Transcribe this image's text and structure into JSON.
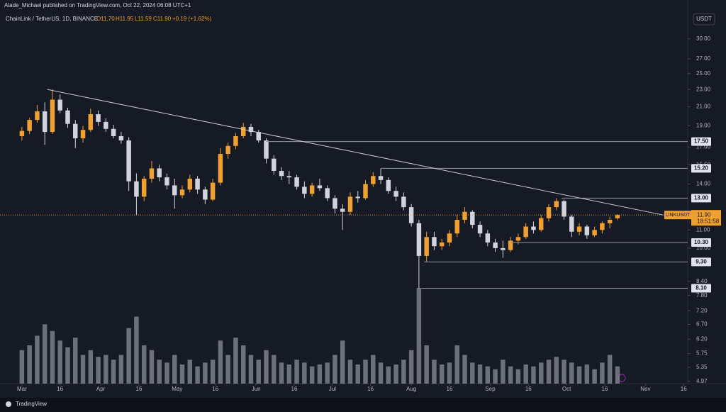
{
  "header": {
    "publisher": "Alade_Michael published on TradingView.com, Oct 22, 2024 06:08 UTC+1",
    "symbol": "ChainLink / TetherUS, 1D, BINANCE",
    "open": "O11.70",
    "high": "H11.95",
    "low": "L11.59",
    "close": "C11.90",
    "change": "+0.19 (+1.62%)"
  },
  "footer": {
    "brand": "TradingView"
  },
  "chart_data": {
    "type": "candlestick",
    "currency": "USDT",
    "symbol_tag": "LINKUSDT",
    "countdown": "18:51:58",
    "log_scale": true,
    "up_color": "#f0a030",
    "down_color": "#d1d4dc",
    "volume_color": "#8a8d96",
    "ylim": [
      4.91,
      32.9
    ],
    "xlim": [
      -8.6,
      261.6
    ],
    "yticks": [
      {
        "value": 30,
        "label": "30.00"
      },
      {
        "value": 27,
        "label": "27.00"
      },
      {
        "value": 25,
        "label": "25.00"
      },
      {
        "value": 23,
        "label": "23.00"
      },
      {
        "value": 21,
        "label": "21.00"
      },
      {
        "value": 19,
        "label": "19.00"
      },
      {
        "value": 17,
        "label": "17.00"
      },
      {
        "value": 15.5,
        "label": "15.50"
      },
      {
        "value": 14,
        "label": "14.00"
      },
      {
        "value": 11,
        "label": "11.00"
      },
      {
        "value": 10,
        "label": "10.00"
      },
      {
        "value": 8.4,
        "label": "8.40"
      },
      {
        "value": 7.8,
        "label": "7.80"
      },
      {
        "value": 7.2,
        "label": "7.20"
      },
      {
        "value": 6.7,
        "label": "6.70"
      },
      {
        "value": 6.2,
        "label": "6.20"
      },
      {
        "value": 5.75,
        "label": "5.75"
      },
      {
        "value": 5.35,
        "label": "5.35"
      },
      {
        "value": 4.97,
        "label": "4.97"
      }
    ],
    "xticks": [
      {
        "value": 0,
        "label": "Mar"
      },
      {
        "value": 15,
        "label": "16"
      },
      {
        "value": 31,
        "label": "Apr"
      },
      {
        "value": 46,
        "label": "16"
      },
      {
        "value": 61,
        "label": "May"
      },
      {
        "value": 76,
        "label": "16"
      },
      {
        "value": 92,
        "label": "Jun"
      },
      {
        "value": 107,
        "label": "16"
      },
      {
        "value": 122,
        "label": "Jul"
      },
      {
        "value": 137,
        "label": "16"
      },
      {
        "value": 153,
        "label": "Aug"
      },
      {
        "value": 168,
        "label": "16"
      },
      {
        "value": 184,
        "label": "Sep"
      },
      {
        "value": 199,
        "label": "16"
      },
      {
        "value": 214,
        "label": "Oct"
      },
      {
        "value": 229,
        "label": "16"
      },
      {
        "value": 245,
        "label": "Nov"
      },
      {
        "value": 260,
        "label": "16"
      }
    ],
    "current": {
      "value": 11.9,
      "label": "11.90"
    },
    "levels": [
      {
        "value": 17.5,
        "label": "17.50",
        "from": 96
      },
      {
        "value": 15.2,
        "label": "15.20",
        "from": 141
      },
      {
        "value": 13.0,
        "label": "13.00",
        "from": 212
      },
      {
        "value": 10.3,
        "label": "10.30",
        "from": 192
      },
      {
        "value": 9.3,
        "label": "9.30",
        "from": 158
      },
      {
        "value": 8.1,
        "label": "8.10",
        "from": 157
      }
    ],
    "trendline": {
      "x": [
        10,
        252
      ],
      "y": [
        23.0,
        11.9
      ]
    },
    "x": [
      0,
      3,
      6,
      9,
      12,
      15,
      18,
      21,
      24,
      27,
      30,
      33,
      36,
      39,
      42,
      45,
      48,
      51,
      54,
      57,
      60,
      63,
      66,
      69,
      72,
      75,
      78,
      81,
      84,
      87,
      90,
      93,
      96,
      99,
      102,
      105,
      108,
      111,
      114,
      117,
      120,
      123,
      126,
      129,
      132,
      135,
      138,
      141,
      144,
      147,
      150,
      153,
      156,
      159,
      162,
      165,
      168,
      171,
      174,
      177,
      180,
      183,
      186,
      189,
      192,
      195,
      198,
      201,
      204,
      207,
      210,
      213,
      216,
      219,
      222,
      225,
      228,
      231,
      234
    ],
    "candles": [
      [
        18.0,
        18.9,
        17.6,
        18.5
      ],
      [
        18.5,
        19.8,
        18.2,
        19.6
      ],
      [
        19.6,
        21.2,
        19.3,
        20.5
      ],
      [
        20.5,
        21.5,
        17.2,
        18.4
      ],
      [
        18.4,
        23.0,
        18.2,
        21.8
      ],
      [
        21.8,
        22.4,
        20.3,
        20.6
      ],
      [
        20.6,
        20.9,
        18.8,
        19.2
      ],
      [
        19.2,
        19.6,
        16.9,
        17.8
      ],
      [
        17.8,
        19.0,
        17.4,
        18.6
      ],
      [
        18.6,
        20.8,
        18.4,
        20.2
      ],
      [
        20.2,
        20.6,
        19.0,
        19.4
      ],
      [
        19.4,
        19.8,
        18.4,
        18.7
      ],
      [
        18.7,
        19.1,
        17.8,
        18.0
      ],
      [
        18.0,
        18.4,
        17.3,
        17.6
      ],
      [
        17.6,
        17.9,
        13.5,
        14.2
      ],
      [
        14.2,
        14.8,
        11.9,
        13.1
      ],
      [
        13.1,
        14.6,
        12.8,
        14.4
      ],
      [
        14.4,
        15.8,
        14.1,
        15.2
      ],
      [
        15.2,
        15.5,
        14.2,
        14.5
      ],
      [
        14.5,
        14.8,
        13.6,
        13.9
      ],
      [
        13.9,
        14.4,
        12.3,
        13.2
      ],
      [
        13.2,
        13.9,
        13.0,
        13.6
      ],
      [
        13.6,
        14.7,
        13.4,
        14.4
      ],
      [
        14.4,
        14.6,
        13.3,
        13.6
      ],
      [
        13.6,
        13.8,
        12.6,
        12.9
      ],
      [
        12.9,
        14.4,
        12.8,
        14.1
      ],
      [
        14.1,
        16.9,
        13.9,
        16.4
      ],
      [
        16.4,
        17.4,
        16.0,
        17.1
      ],
      [
        17.1,
        18.3,
        16.8,
        18.0
      ],
      [
        18.0,
        19.3,
        17.8,
        18.9
      ],
      [
        18.9,
        19.2,
        18.0,
        18.4
      ],
      [
        18.4,
        18.6,
        17.4,
        17.6
      ],
      [
        17.6,
        17.8,
        15.6,
        16.0
      ],
      [
        16.0,
        16.3,
        14.7,
        15.0
      ],
      [
        15.0,
        15.3,
        14.3,
        14.6
      ],
      [
        14.6,
        15.0,
        14.0,
        14.5
      ],
      [
        14.5,
        14.7,
        13.6,
        13.8
      ],
      [
        13.8,
        14.2,
        13.0,
        13.3
      ],
      [
        13.3,
        14.1,
        13.1,
        13.9
      ],
      [
        13.9,
        14.4,
        13.5,
        13.7
      ],
      [
        13.7,
        13.9,
        12.8,
        13.0
      ],
      [
        13.0,
        13.2,
        12.0,
        12.3
      ],
      [
        12.3,
        12.6,
        11.0,
        12.1
      ],
      [
        12.1,
        13.4,
        11.9,
        13.1
      ],
      [
        13.1,
        13.5,
        12.7,
        13.0
      ],
      [
        13.0,
        14.3,
        12.9,
        14.0
      ],
      [
        14.0,
        14.9,
        13.8,
        14.6
      ],
      [
        14.6,
        15.2,
        14.0,
        14.3
      ],
      [
        14.3,
        14.5,
        13.3,
        13.5
      ],
      [
        13.5,
        13.8,
        12.8,
        13.1
      ],
      [
        13.1,
        13.4,
        12.2,
        12.4
      ],
      [
        12.4,
        12.6,
        11.2,
        11.4
      ],
      [
        11.4,
        11.6,
        8.1,
        9.6
      ],
      [
        9.6,
        10.9,
        9.3,
        10.6
      ],
      [
        10.6,
        10.9,
        9.9,
        10.1
      ],
      [
        10.1,
        10.5,
        9.9,
        10.3
      ],
      [
        10.3,
        11.0,
        10.1,
        10.8
      ],
      [
        10.8,
        11.9,
        10.6,
        11.6
      ],
      [
        11.6,
        12.4,
        11.4,
        12.1
      ],
      [
        12.1,
        12.2,
        11.1,
        11.3
      ],
      [
        11.3,
        11.5,
        10.6,
        10.8
      ],
      [
        10.8,
        11.0,
        10.1,
        10.3
      ],
      [
        10.3,
        10.5,
        9.8,
        10.0
      ],
      [
        10.0,
        10.4,
        9.5,
        9.9
      ],
      [
        9.9,
        10.6,
        9.8,
        10.4
      ],
      [
        10.4,
        10.8,
        10.2,
        10.6
      ],
      [
        10.6,
        11.4,
        10.5,
        11.2
      ],
      [
        11.2,
        11.5,
        10.8,
        11.0
      ],
      [
        11.0,
        11.9,
        10.9,
        11.7
      ],
      [
        11.7,
        12.6,
        11.5,
        12.4
      ],
      [
        12.4,
        13.0,
        12.2,
        12.8
      ],
      [
        12.8,
        12.9,
        11.6,
        11.8
      ],
      [
        11.8,
        11.9,
        10.6,
        10.9
      ],
      [
        10.9,
        11.4,
        10.7,
        11.2
      ],
      [
        11.2,
        11.3,
        10.5,
        10.7
      ],
      [
        10.7,
        11.2,
        10.6,
        11.0
      ],
      [
        11.0,
        11.5,
        10.8,
        11.4
      ],
      [
        11.4,
        11.8,
        11.1,
        11.6
      ],
      [
        11.7,
        11.95,
        11.59,
        11.9
      ]
    ],
    "volume": [
      35,
      40,
      50,
      62,
      55,
      45,
      38,
      48,
      30,
      35,
      28,
      30,
      25,
      30,
      58,
      70,
      40,
      35,
      25,
      22,
      30,
      20,
      25,
      18,
      22,
      25,
      45,
      30,
      48,
      40,
      30,
      25,
      35,
      30,
      22,
      20,
      25,
      22,
      18,
      20,
      22,
      30,
      45,
      25,
      20,
      25,
      30,
      22,
      18,
      20,
      25,
      35,
      100,
      40,
      25,
      20,
      22,
      40,
      30,
      22,
      20,
      18,
      15,
      25,
      18,
      15,
      20,
      18,
      22,
      25,
      28,
      25,
      22,
      18,
      20,
      15,
      22,
      30,
      18
    ]
  }
}
